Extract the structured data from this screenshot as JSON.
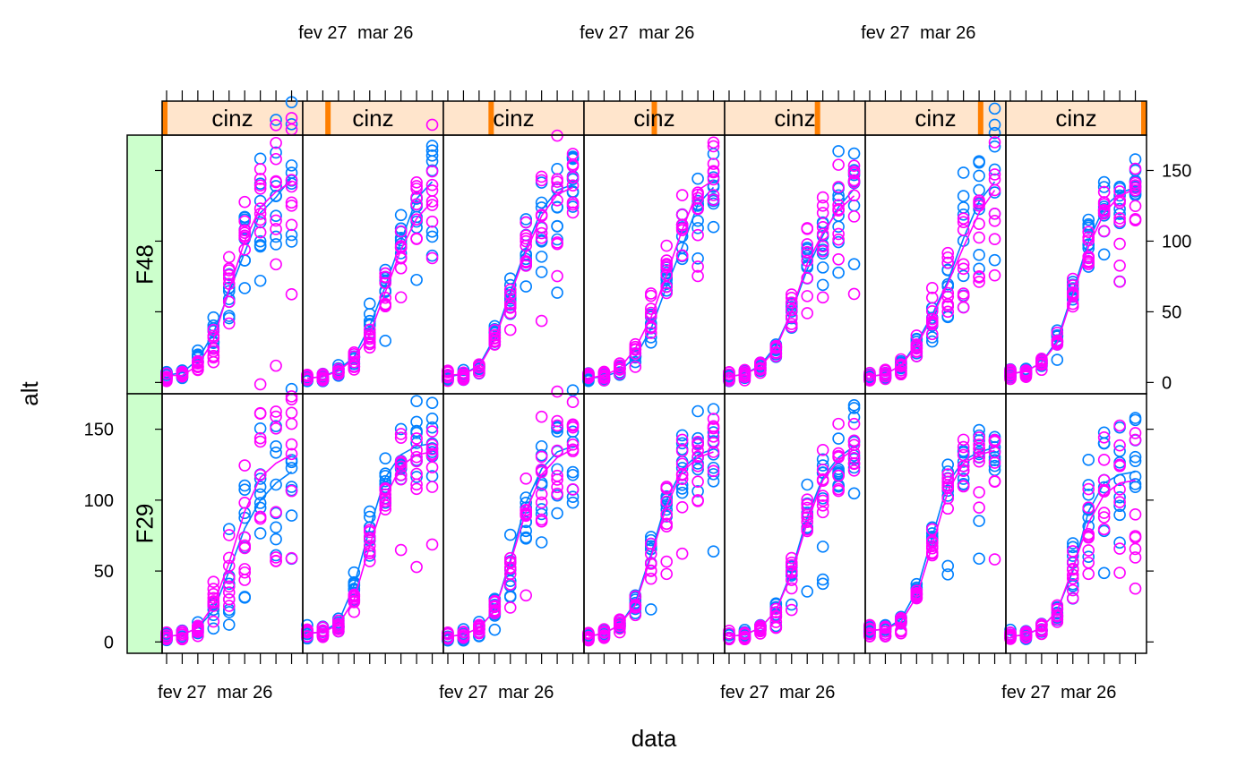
{
  "chart_data": {
    "type": "scatter",
    "title": "",
    "xlabel": "data",
    "ylabel": "alt",
    "x_tick_labels": [
      "fev 27",
      "mar 26"
    ],
    "x_tick_dates": [
      "2016-02-27",
      "2016-03-26"
    ],
    "xlim": [
      "2016-02-18",
      "2016-04-21"
    ],
    "x_minor_tick_interval_days": 7,
    "y_ticks": [
      0,
      50,
      100,
      150
    ],
    "ylim": [
      -8,
      175
    ],
    "colors": {
      "series_a": "#0080ff",
      "series_b": "#ff00ff"
    },
    "strip_colors": {
      "column": "#ffe5cc",
      "column_marker": "#ff7f00",
      "row": "#ccffcc"
    },
    "sample_dates": [
      "2016-02-20",
      "2016-02-27",
      "2016-03-05",
      "2016-03-12",
      "2016-03-19",
      "2016-03-26",
      "2016-04-02",
      "2016-04-09",
      "2016-04-16"
    ],
    "rows": [
      {
        "label": "F48",
        "group": "cinz",
        "panels": [
          {
            "curve_a": [
              5,
              7,
              16,
              35,
              64,
              92,
              120,
              131,
              145
            ],
            "curve_b": [
              5,
              5,
              12,
              30,
              66,
              100,
              124,
              135,
              142
            ],
            "spread": 0.18
          },
          {
            "curve_a": [
              3,
              4,
              9,
              18,
              40,
              68,
              100,
              130,
              142
            ],
            "curve_b": [
              3,
              4,
              8,
              17,
              34,
              64,
              94,
              116,
              128
            ],
            "spread": 0.16
          },
          {
            "curve_a": [
              4,
              6,
              12,
              32,
              64,
              95,
              122,
              136,
              140
            ],
            "curve_b": [
              5,
              6,
              11,
              30,
              62,
              92,
              118,
              133,
              138
            ],
            "spread": 0.13
          },
          {
            "curve_a": [
              3,
              4,
              8,
              18,
              38,
              68,
              96,
              126,
              138
            ],
            "curve_b": [
              3,
              5,
              10,
              24,
              46,
              76,
              108,
              136,
              143
            ],
            "spread": 0.15
          },
          {
            "curve_a": [
              4,
              6,
              12,
              26,
              50,
              80,
              104,
              124,
              137
            ],
            "curve_b": [
              4,
              6,
              11,
              24,
              50,
              84,
              106,
              122,
              132
            ],
            "spread": 0.15
          },
          {
            "curve_a": [
              4,
              6,
              12,
              28,
              48,
              72,
              102,
              128,
              142
            ],
            "curve_b": [
              4,
              6,
              12,
              26,
              46,
              70,
              96,
              120,
              136
            ],
            "spread": 0.2
          },
          {
            "curve_a": [
              6,
              8,
              14,
              30,
              64,
              100,
              124,
              134,
              138
            ],
            "curve_b": [
              6,
              8,
              14,
              28,
              62,
              96,
              120,
              132,
              137
            ],
            "spread": 0.1
          }
        ]
      },
      {
        "label": "F29",
        "group": "cinz",
        "panels": [
          {
            "curve_a": [
              4,
              5,
              10,
              22,
              50,
              80,
              100,
              112,
              120
            ],
            "curve_b": [
              4,
              5,
              10,
              26,
              56,
              92,
              116,
              126,
              132
            ],
            "spread": 0.3
          },
          {
            "curve_a": [
              6,
              7,
              14,
              40,
              80,
              116,
              132,
              138,
              140
            ],
            "curve_b": [
              6,
              7,
              12,
              30,
              68,
              102,
              124,
              132,
              134
            ],
            "spread": 0.1
          },
          {
            "curve_a": [
              4,
              5,
              10,
              22,
              58,
              98,
              122,
              134,
              138
            ],
            "curve_b": [
              4,
              5,
              10,
              22,
              56,
              92,
              118,
              130,
              136
            ],
            "spread": 0.18
          },
          {
            "curve_a": [
              4,
              6,
              12,
              28,
              62,
              100,
              122,
              132,
              136
            ],
            "curve_b": [
              4,
              6,
              12,
              26,
              60,
              96,
              120,
              130,
              134
            ],
            "spread": 0.12
          },
          {
            "curve_a": [
              4,
              5,
              10,
              22,
              50,
              88,
              116,
              130,
              138
            ],
            "curve_b": [
              4,
              5,
              10,
              22,
              48,
              84,
              114,
              128,
              136
            ],
            "spread": 0.12
          },
          {
            "curve_a": [
              8,
              9,
              16,
              36,
              74,
              112,
              128,
              134,
              137
            ],
            "curve_b": [
              8,
              9,
              14,
              32,
              68,
              106,
              126,
              132,
              135
            ],
            "spread": 0.08
          },
          {
            "curve_a": [
              4,
              5,
              10,
              22,
              50,
              92,
              112,
              118,
              120
            ],
            "curve_b": [
              4,
              5,
              10,
              22,
              52,
              84,
              104,
              112,
              114
            ],
            "spread": 0.25
          }
        ]
      }
    ]
  }
}
